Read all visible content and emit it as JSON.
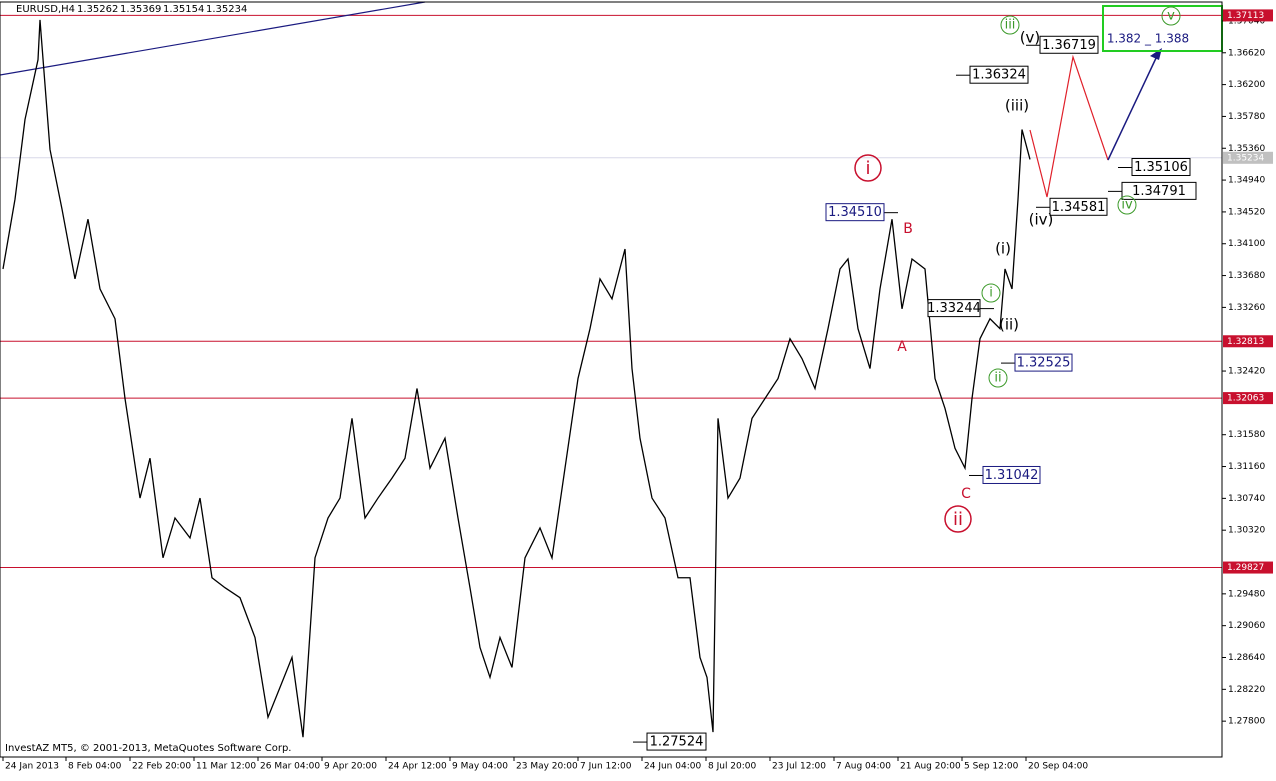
{
  "chart_data": {
    "type": "line",
    "title": "EURUSD,H4",
    "quote": [
      1.35262,
      1.35369,
      1.35154,
      1.35234
    ],
    "copyright": "InvestAZ MT5, © 2001-2013, MetaQuotes Software Corp.",
    "color": "#000000",
    "xlim": [
      0,
      1222
    ],
    "ylim": [
      1.27327,
      1.3729
    ],
    "x": [
      3,
      15,
      25,
      38,
      40,
      50,
      62,
      75,
      88,
      100,
      115,
      125,
      140,
      150,
      163,
      175,
      190,
      200,
      212,
      225,
      240,
      255,
      268,
      280,
      292,
      303,
      315,
      328,
      340,
      352,
      365,
      378,
      392,
      405,
      417,
      430,
      445,
      458,
      470,
      480,
      490,
      500,
      512,
      525,
      540,
      552,
      565,
      578,
      590,
      600,
      612,
      625,
      632,
      640,
      652,
      665,
      678,
      690,
      700,
      707,
      713,
      718,
      728,
      740,
      752,
      765,
      778,
      790,
      802,
      815,
      828,
      840,
      848,
      858,
      870,
      880,
      892,
      902,
      912,
      925,
      935,
      945,
      955,
      965,
      972,
      980,
      990,
      1000,
      1005,
      1012,
      1018,
      1022,
      1030
    ],
    "values": [
      1.33767,
      1.34687,
      1.35739,
      1.36527,
      1.37053,
      1.35344,
      1.34556,
      1.33636,
      1.34424,
      1.33504,
      1.3311,
      1.32058,
      1.30744,
      1.3127,
      1.29955,
      1.30481,
      1.30218,
      1.30744,
      1.29692,
      1.29561,
      1.29429,
      1.28904,
      1.27852,
      1.28246,
      1.28641,
      1.27589,
      1.29955,
      1.30481,
      1.30744,
      1.31796,
      1.30481,
      1.30744,
      1.31007,
      1.3127,
      1.3219,
      1.31139,
      1.31533,
      1.30481,
      1.29561,
      1.28773,
      1.28378,
      1.28904,
      1.28509,
      1.29955,
      1.3035,
      1.29955,
      1.31139,
      1.32321,
      1.32979,
      1.33636,
      1.33373,
      1.3403,
      1.32453,
      1.31533,
      1.30744,
      1.30481,
      1.29692,
      1.29692,
      1.28641,
      1.28378,
      1.27656,
      1.31796,
      1.30744,
      1.31007,
      1.31796,
      1.32058,
      1.32321,
      1.32847,
      1.32584,
      1.3219,
      1.32979,
      1.33767,
      1.33899,
      1.32979,
      1.32453,
      1.33504,
      1.34424,
      1.33241,
      1.33899,
      1.33767,
      1.32321,
      1.31927,
      1.31401,
      1.31139,
      1.32058,
      1.32847,
      1.3311,
      1.32979,
      1.33767,
      1.33504,
      1.34687,
      1.35607,
      1.35213
    ],
    "xticks": [
      {
        "value": 3,
        "label": "24 Jan 2013"
      },
      {
        "value": 66,
        "label": "8 Feb 04:00"
      },
      {
        "value": 130,
        "label": "22 Feb 20:00"
      },
      {
        "value": 194,
        "label": "11 Mar 12:00"
      },
      {
        "value": 258,
        "label": "26 Mar 04:00"
      },
      {
        "value": 322,
        "label": "9 Apr 20:00"
      },
      {
        "value": 386,
        "label": "24 Apr 12:00"
      },
      {
        "value": 450,
        "label": "9 May 04:00"
      },
      {
        "value": 514,
        "label": "23 May 20:00"
      },
      {
        "value": 578,
        "label": "7 Jun 12:00"
      },
      {
        "value": 642,
        "label": "24 Jun 04:00"
      },
      {
        "value": 706,
        "label": "8 Jul 20:00"
      },
      {
        "value": 770,
        "label": "23 Jul 12:00"
      },
      {
        "value": 834,
        "label": "7 Aug 04:00"
      },
      {
        "value": 898,
        "label": "21 Aug 20:00"
      },
      {
        "value": 962,
        "label": "5 Sep 12:00"
      },
      {
        "value": 1026,
        "label": "20 Sep 04:00"
      }
    ],
    "yticks": [
      {
        "value": 1.3704,
        "label": "1.37040"
      },
      {
        "value": 1.3662,
        "label": "1.36620"
      },
      {
        "value": 1.362,
        "label": "1.36200"
      },
      {
        "value": 1.3578,
        "label": "1.35780"
      },
      {
        "value": 1.3536,
        "label": "1.35360"
      },
      {
        "value": 1.3494,
        "label": "1.34940"
      },
      {
        "value": 1.3452,
        "label": "1.34520"
      },
      {
        "value": 1.341,
        "label": "1.34100"
      },
      {
        "value": 1.3368,
        "label": "1.33680"
      },
      {
        "value": 1.3326,
        "label": "1.33260"
      },
      {
        "value": 1.3242,
        "label": "1.32420"
      },
      {
        "value": 1.3158,
        "label": "1.31580"
      },
      {
        "value": 1.3116,
        "label": "1.31160"
      },
      {
        "value": 1.3074,
        "label": "1.30740"
      },
      {
        "value": 1.3032,
        "label": "1.30320"
      },
      {
        "value": 1.2948,
        "label": "1.29480"
      },
      {
        "value": 1.2906,
        "label": "1.29060"
      },
      {
        "value": 1.2864,
        "label": "1.28640"
      },
      {
        "value": 1.2822,
        "label": "1.28220"
      },
      {
        "value": 1.278,
        "label": "1.27800"
      }
    ],
    "levels": [
      1.37113,
      1.32813,
      1.32063,
      1.29827
    ],
    "level_color": "#c8102e",
    "price_labels": [
      1.36719,
      1.36324,
      1.35106,
      1.34791,
      1.34581,
      {
        "value": 1.3451,
        "label": "1.34510"
      },
      1.33244,
      1.32525,
      1.31042,
      1.27524
    ],
    "wave_labels": [
      "i",
      "ii",
      "A",
      "B",
      "C",
      "(iii)",
      "(iv)",
      "(v)",
      "(i)",
      "(ii)",
      "iii",
      "iv",
      "v",
      "i",
      "ii"
    ],
    "target": "1.382 _ 1.388"
  }
}
